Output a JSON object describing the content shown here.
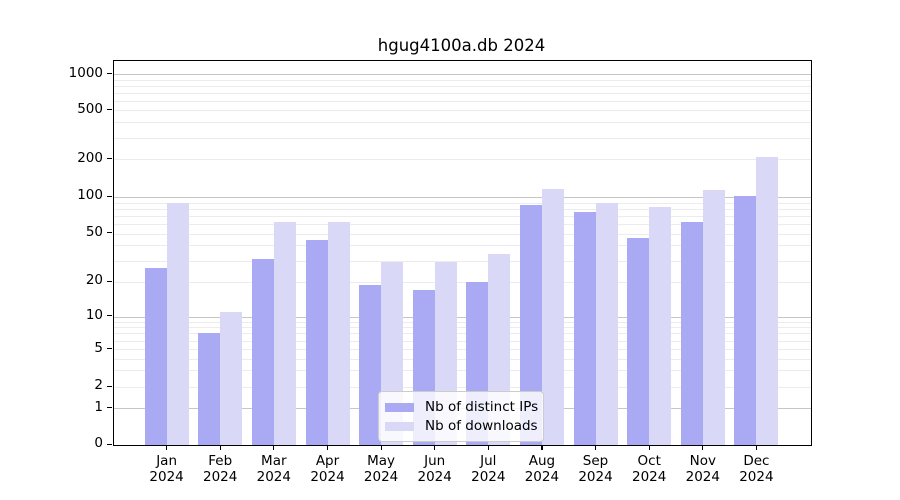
{
  "title": "hgug4100a.db 2024",
  "colors": {
    "distinct_ips": "#a9a9f4",
    "downloads": "#d9d9f7",
    "grid_major": "#c6c6c6",
    "grid_minor": "#ececec",
    "axis": "#000000"
  },
  "legend": {
    "items": [
      {
        "label": "Nb of distinct IPs",
        "color_key": "distinct_ips"
      },
      {
        "label": "Nb of downloads",
        "color_key": "downloads"
      }
    ]
  },
  "y_axis": {
    "ticks": [
      0,
      1,
      2,
      5,
      10,
      20,
      50,
      100,
      200,
      500,
      1000
    ]
  },
  "x_axis": {
    "labels": [
      {
        "line1": "Jan",
        "line2": "2024"
      },
      {
        "line1": "Feb",
        "line2": "2024"
      },
      {
        "line1": "Mar",
        "line2": "2024"
      },
      {
        "line1": "Apr",
        "line2": "2024"
      },
      {
        "line1": "May",
        "line2": "2024"
      },
      {
        "line1": "Jun",
        "line2": "2024"
      },
      {
        "line1": "Jul",
        "line2": "2024"
      },
      {
        "line1": "Aug",
        "line2": "2024"
      },
      {
        "line1": "Sep",
        "line2": "2024"
      },
      {
        "line1": "Oct",
        "line2": "2024"
      },
      {
        "line1": "Nov",
        "line2": "2024"
      },
      {
        "line1": "Dec",
        "line2": "2024"
      }
    ]
  },
  "chart_data": {
    "type": "bar",
    "title": "hgug4100a.db 2024",
    "categories": [
      "Jan 2024",
      "Feb 2024",
      "Mar 2024",
      "Apr 2024",
      "May 2024",
      "Jun 2024",
      "Jul 2024",
      "Aug 2024",
      "Sep 2024",
      "Oct 2024",
      "Nov 2024",
      "Dec 2024"
    ],
    "series": [
      {
        "name": "Nb of distinct IPs",
        "values": [
          26,
          7,
          31,
          44,
          19,
          17,
          20,
          86,
          76,
          46,
          63,
          102
        ]
      },
      {
        "name": "Nb of downloads",
        "values": [
          89,
          11,
          62,
          62,
          29,
          29,
          34,
          115,
          89,
          83,
          113,
          210
        ]
      }
    ],
    "xlabel": "",
    "ylabel": "",
    "y_ticks": [
      0,
      1,
      2,
      5,
      10,
      20,
      50,
      100,
      200,
      500,
      1000
    ],
    "yscale": "log-like (linear segment 0-1, logarithmic above)",
    "ylim": [
      0,
      1200
    ],
    "grid": true,
    "legend_position": "lower center"
  }
}
